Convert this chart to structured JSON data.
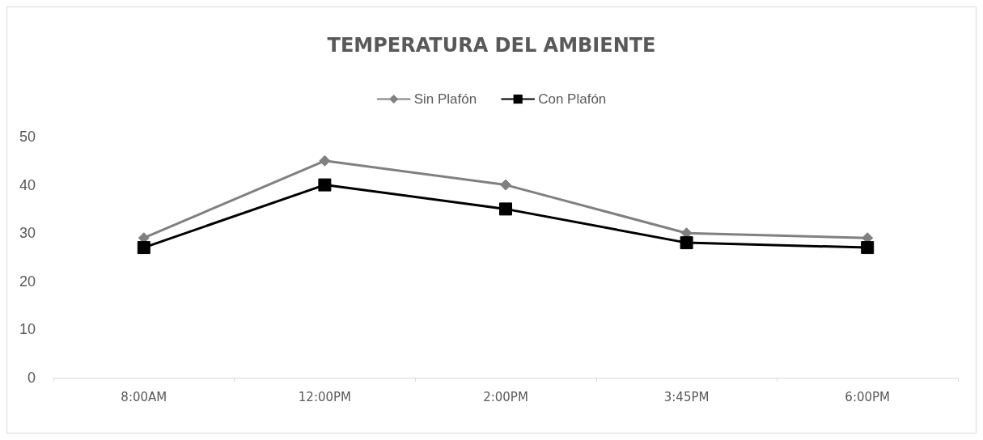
{
  "chart_data": {
    "type": "line",
    "title": "TEMPERATURA DEL AMBIENTE",
    "categories": [
      "8:00AM",
      "12:00PM",
      "2:00PM",
      "3:45PM",
      "6:00PM"
    ],
    "series": [
      {
        "name": "Sin Plafón",
        "color": "#808080",
        "marker": "diamond",
        "values": [
          29,
          45,
          40,
          30,
          29
        ]
      },
      {
        "name": "Con Plafón",
        "color": "#000000",
        "marker": "square",
        "values": [
          27,
          40,
          35,
          28,
          27
        ]
      }
    ],
    "ylim": [
      0,
      50
    ],
    "yticks": [
      0,
      10,
      20,
      30,
      40,
      50
    ],
    "grid": false,
    "legend": "top",
    "line_style": "solid"
  }
}
